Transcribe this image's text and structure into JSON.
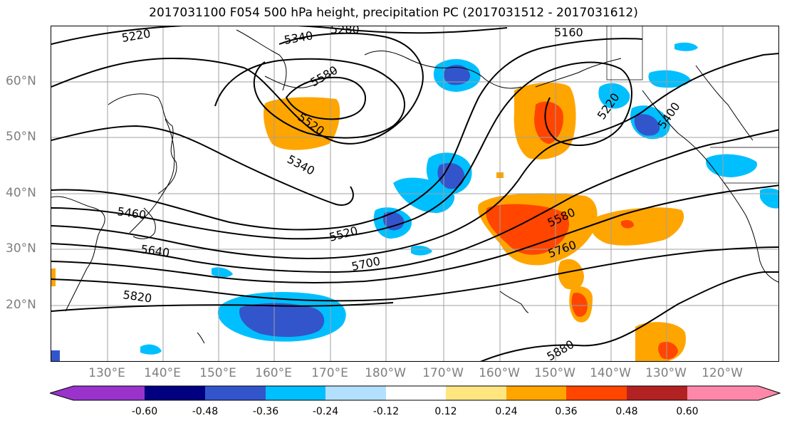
{
  "title": "2017031100 F054 500 hPa height, precipitation PC (2017031512 - 2017031612)",
  "lat_labels": [
    "60°N",
    "50°N",
    "40°N",
    "30°N",
    "20°N"
  ],
  "lon_labels": [
    "130°E",
    "140°E",
    "150°E",
    "160°E",
    "170°E",
    "180°W",
    "170°W",
    "160°W",
    "150°W",
    "140°W",
    "130°W",
    "120°W"
  ],
  "contour_labels": [
    "5220",
    "5340",
    "5280",
    "5160",
    "5580",
    "5520",
    "5340",
    "5220",
    "5400",
    "5460",
    "5520",
    "5580",
    "5640",
    "5700",
    "5760",
    "5820",
    "5880"
  ],
  "colorbar": {
    "ticks": [
      "-0.60",
      "-0.48",
      "-0.36",
      "-0.24",
      "-0.12",
      "0.12",
      "0.24",
      "0.36",
      "0.48",
      "0.60"
    ],
    "colors": [
      "#9933cc",
      "#000080",
      "#3355cc",
      "#00bfff",
      "#b3e0ff",
      "#ffffff",
      "#ffe680",
      "#ffa500",
      "#ff4500",
      "#b22222",
      "#ff88aa"
    ]
  },
  "colors": {
    "neg_light": "#00bfff",
    "neg_mid": "#3355cc",
    "neg_dark": "#000080",
    "pos_light": "#ffa500",
    "pos_mid": "#ff4500",
    "pos_pale": "#ffe680",
    "grid": "#a0a0a0",
    "axis_label": "#7f7f7f"
  }
}
